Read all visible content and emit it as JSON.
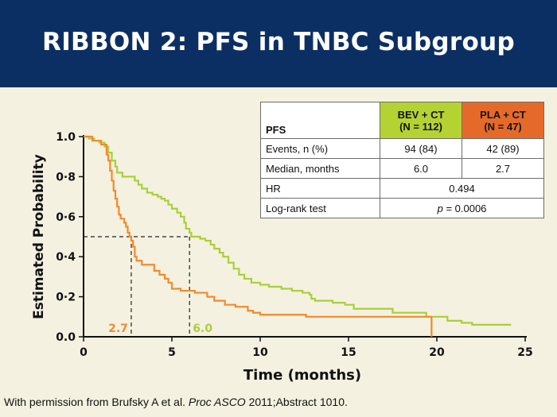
{
  "header": {
    "title": "RIBBON 2: PFS in TNBC Subgroup",
    "background": "#0c2f63"
  },
  "table": {
    "corner_label": "PFS",
    "columns": [
      {
        "line1": "BEV + CT",
        "line2": "(N = 112)",
        "color": "#b4d333"
      },
      {
        "line1": "PLA + CT",
        "line2": "(N = 47)",
        "color": "#e56a2a"
      }
    ],
    "rows": [
      {
        "label": "Events, n (%)",
        "bev": "94 (84)",
        "pla": "42 (89)"
      },
      {
        "label": "Median, months",
        "bev": "6.0",
        "pla": "2.7"
      },
      {
        "label": "HR",
        "combined": "0.494"
      },
      {
        "label": "Log-rank test",
        "combined_p": "p",
        "combined_rest": " = 0.0006"
      }
    ]
  },
  "chart_data": {
    "type": "line",
    "subtype": "kaplan-meier",
    "xlabel": "Time (months)",
    "ylabel": "Estimated Probability",
    "xlim": [
      0,
      25
    ],
    "ylim": [
      0,
      1
    ],
    "x_ticks": [
      "0",
      "5",
      "10",
      "15",
      "20",
      "25"
    ],
    "y_ticks": [
      "0.0",
      "0·2",
      "0·4",
      "0·6",
      "0·8",
      "1.0"
    ],
    "grid": false,
    "series": [
      {
        "name": "BEV + CT",
        "color": "#a9cf3b",
        "median_label": "6.0",
        "median": 6.0,
        "points": [
          [
            0,
            1.0
          ],
          [
            0.3,
            0.99
          ],
          [
            0.6,
            0.98
          ],
          [
            0.9,
            0.97
          ],
          [
            1.2,
            0.95
          ],
          [
            1.4,
            0.92
          ],
          [
            1.6,
            0.88
          ],
          [
            1.8,
            0.85
          ],
          [
            1.9,
            0.82
          ],
          [
            2.2,
            0.8
          ],
          [
            2.9,
            0.78
          ],
          [
            3.1,
            0.76
          ],
          [
            3.3,
            0.74
          ],
          [
            3.6,
            0.72
          ],
          [
            3.9,
            0.71
          ],
          [
            4.2,
            0.7
          ],
          [
            4.4,
            0.69
          ],
          [
            4.6,
            0.68
          ],
          [
            4.8,
            0.66
          ],
          [
            5.0,
            0.64
          ],
          [
            5.3,
            0.62
          ],
          [
            5.5,
            0.6
          ],
          [
            5.7,
            0.57
          ],
          [
            5.8,
            0.54
          ],
          [
            6.0,
            0.52
          ],
          [
            6.1,
            0.5
          ],
          [
            6.6,
            0.49
          ],
          [
            6.9,
            0.48
          ],
          [
            7.2,
            0.46
          ],
          [
            7.4,
            0.44
          ],
          [
            7.7,
            0.42
          ],
          [
            7.9,
            0.4
          ],
          [
            8.2,
            0.37
          ],
          [
            8.5,
            0.34
          ],
          [
            8.8,
            0.31
          ],
          [
            9.1,
            0.29
          ],
          [
            9.5,
            0.27
          ],
          [
            10.0,
            0.26
          ],
          [
            10.5,
            0.25
          ],
          [
            11.2,
            0.24
          ],
          [
            11.8,
            0.23
          ],
          [
            12.4,
            0.22
          ],
          [
            12.8,
            0.21
          ],
          [
            12.9,
            0.19
          ],
          [
            13.1,
            0.18
          ],
          [
            14.1,
            0.17
          ],
          [
            14.8,
            0.16
          ],
          [
            15.3,
            0.14
          ],
          [
            17.5,
            0.12
          ],
          [
            19.4,
            0.1
          ],
          [
            20.6,
            0.08
          ],
          [
            21.4,
            0.07
          ],
          [
            22.0,
            0.06
          ],
          [
            24.2,
            0.06
          ]
        ]
      },
      {
        "name": "PLA + CT",
        "color": "#f28a2e",
        "median_label": "2.7",
        "median": 2.7,
        "points": [
          [
            0,
            1.0
          ],
          [
            0.5,
            0.98
          ],
          [
            1.0,
            0.96
          ],
          [
            1.3,
            0.91
          ],
          [
            1.4,
            0.88
          ],
          [
            1.5,
            0.83
          ],
          [
            1.6,
            0.78
          ],
          [
            1.7,
            0.73
          ],
          [
            1.8,
            0.69
          ],
          [
            1.9,
            0.65
          ],
          [
            2.0,
            0.61
          ],
          [
            2.1,
            0.59
          ],
          [
            2.3,
            0.57
          ],
          [
            2.4,
            0.55
          ],
          [
            2.5,
            0.52
          ],
          [
            2.6,
            0.5
          ],
          [
            2.7,
            0.48
          ],
          [
            2.8,
            0.45
          ],
          [
            2.9,
            0.4
          ],
          [
            3.0,
            0.38
          ],
          [
            3.3,
            0.36
          ],
          [
            4.0,
            0.33
          ],
          [
            4.3,
            0.31
          ],
          [
            4.6,
            0.29
          ],
          [
            4.8,
            0.27
          ],
          [
            5.0,
            0.24
          ],
          [
            5.5,
            0.23
          ],
          [
            6.3,
            0.22
          ],
          [
            7.0,
            0.2
          ],
          [
            7.4,
            0.18
          ],
          [
            8.0,
            0.16
          ],
          [
            8.6,
            0.15
          ],
          [
            9.3,
            0.13
          ],
          [
            9.6,
            0.12
          ],
          [
            10.0,
            0.11
          ],
          [
            11.5,
            0.11
          ],
          [
            12.6,
            0.1
          ],
          [
            19.7,
            0.1
          ],
          [
            19.7,
            0.0
          ]
        ]
      }
    ]
  },
  "footnote": {
    "prefix": "With permission from Brufsky A et al. ",
    "journal": "Proc ASCO",
    "suffix": " 2011;Abstract 1010."
  }
}
